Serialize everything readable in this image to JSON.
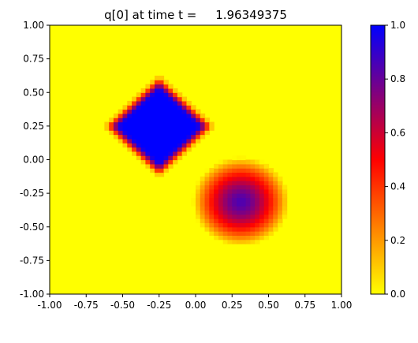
{
  "chart_data": {
    "type": "heatmap",
    "title": "q[0] at time t =     1.96349375",
    "xlabel": "",
    "ylabel": "",
    "xlim": [
      -1.0,
      1.0
    ],
    "ylim": [
      -1.0,
      1.0
    ],
    "x_ticks": [
      "-1.00",
      "-0.75",
      "-0.50",
      "-0.25",
      "0.00",
      "0.25",
      "0.50",
      "0.75",
      "1.00"
    ],
    "y_ticks": [
      "-1.00",
      "-0.75",
      "-0.50",
      "-0.25",
      "0.00",
      "0.25",
      "0.50",
      "0.75",
      "1.00"
    ],
    "colorbar": {
      "range": [
        0.0,
        1.0
      ],
      "ticks": [
        "0.0",
        "0.2",
        "0.4",
        "0.6",
        "0.8",
        "1.0"
      ],
      "colors": [
        "#ffff00",
        "#ff0000",
        "#0000ff"
      ]
    },
    "background_value": 0.0,
    "grid": false,
    "shapes": [
      {
        "name": "diamond",
        "center": [
          -0.25,
          0.25
        ],
        "half_width": 0.33,
        "peak": 1.0
      },
      {
        "name": "disk",
        "center": [
          0.31,
          -0.31
        ],
        "radius": 0.33,
        "peak": 0.85
      }
    ]
  }
}
